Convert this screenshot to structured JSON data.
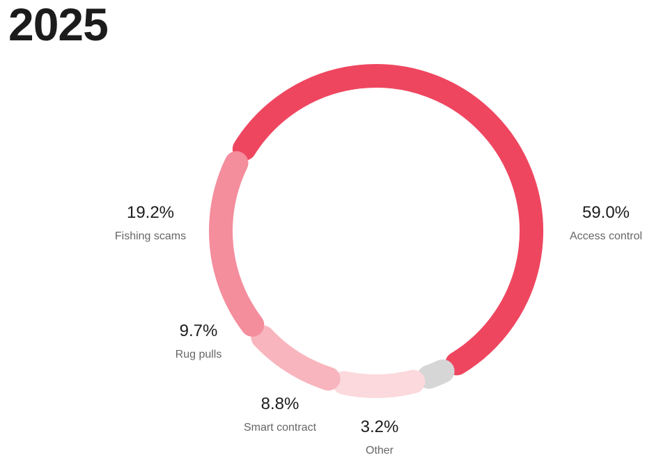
{
  "title": "2025",
  "chart_data": {
    "type": "pie",
    "style": "donut",
    "categories": [
      "Access control",
      "Other",
      "Smart contract",
      "Rug pulls",
      "Fishing scams"
    ],
    "values": [
      59.0,
      3.2,
      8.8,
      9.7,
      19.2
    ],
    "labels": [
      "59.0%",
      "3.2%",
      "8.8%",
      "9.7%",
      "19.2%"
    ],
    "colors": [
      "#ef4660",
      "#d6d6d6",
      "#fbd9dd",
      "#f8b5bd",
      "#f48d9c"
    ]
  }
}
